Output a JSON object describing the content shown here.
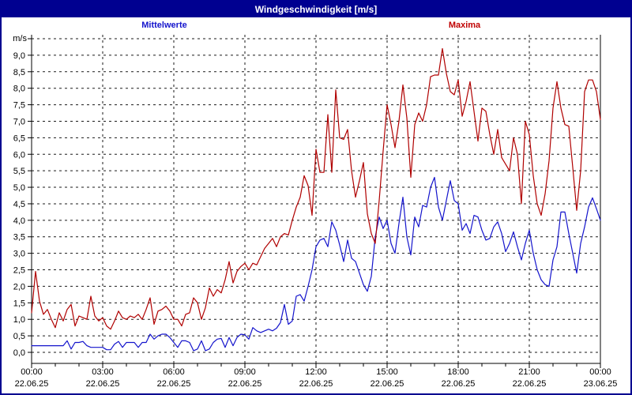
{
  "header": {
    "title": "Windgeschwindigkeit [m/s]"
  },
  "legend": {
    "mean_label": "Mittelwerte",
    "max_label": "Maxima"
  },
  "colors": {
    "header_bg": "#000090",
    "frame_border": "#000090",
    "mean_line": "#1414cc",
    "max_line": "#b00000",
    "grid": "#1a1a1a"
  },
  "chart_data": {
    "type": "line",
    "title": "Windgeschwindigkeit [m/s]",
    "ylabel": "m/s",
    "ylim": [
      0,
      9.5
    ],
    "ytick_step": 0.5,
    "ytick_labels": [
      "0,0",
      "0,5",
      "1,0",
      "1,5",
      "2,0",
      "2,5",
      "3,0",
      "3,5",
      "4,0",
      "4,5",
      "5,0",
      "5,5",
      "6,0",
      "6,5",
      "7,0",
      "7,5",
      "8,0",
      "8,5",
      "9,0"
    ],
    "grid": "dashed",
    "x_range_hours": [
      0,
      24
    ],
    "sample_interval_minutes": 10,
    "xticks": [
      {
        "hour": 0,
        "time": "00:00",
        "date": "22.06.25"
      },
      {
        "hour": 3,
        "time": "03:00",
        "date": "22.06.25"
      },
      {
        "hour": 6,
        "time": "06:00",
        "date": "22.06.25"
      },
      {
        "hour": 9,
        "time": "09:00",
        "date": "22.06.25"
      },
      {
        "hour": 12,
        "time": "12:00",
        "date": "22.06.25"
      },
      {
        "hour": 15,
        "time": "15:00",
        "date": "22.06.25"
      },
      {
        "hour": 18,
        "time": "18:00",
        "date": "22.06.25"
      },
      {
        "hour": 21,
        "time": "21:00",
        "date": "22.06.25"
      },
      {
        "hour": 24,
        "time": "00:00",
        "date": "23.06.25"
      }
    ],
    "series": [
      {
        "name": "Mittelwerte",
        "color": "#1414cc",
        "values": [
          0.2,
          0.2,
          0.2,
          0.2,
          0.2,
          0.2,
          0.2,
          0.2,
          0.2,
          0.35,
          0.1,
          0.3,
          0.3,
          0.33,
          0.2,
          0.15,
          0.15,
          0.15,
          0.15,
          0.08,
          0.08,
          0.25,
          0.33,
          0.15,
          0.3,
          0.3,
          0.3,
          0.15,
          0.3,
          0.3,
          0.55,
          0.4,
          0.5,
          0.55,
          0.55,
          0.45,
          0.3,
          0.15,
          0.35,
          0.35,
          0.3,
          0.05,
          0.1,
          0.35,
          0.05,
          0.1,
          0.3,
          0.4,
          0.42,
          0.15,
          0.45,
          0.2,
          0.45,
          0.55,
          0.53,
          0.4,
          0.75,
          0.65,
          0.6,
          0.65,
          0.7,
          0.65,
          0.73,
          0.9,
          1.45,
          0.85,
          0.95,
          1.7,
          1.75,
          1.55,
          2.0,
          2.5,
          3.2,
          3.4,
          3.45,
          3.2,
          3.95,
          3.7,
          3.25,
          2.75,
          3.4,
          2.85,
          2.75,
          2.4,
          2.05,
          1.85,
          2.3,
          3.5,
          4.1,
          3.75,
          4.0,
          3.3,
          3.0,
          3.9,
          4.7,
          3.5,
          2.95,
          4.1,
          3.8,
          4.45,
          4.4,
          5.0,
          5.3,
          4.4,
          4.0,
          4.6,
          5.2,
          4.6,
          4.5,
          3.7,
          3.9,
          3.6,
          4.15,
          4.1,
          3.7,
          3.4,
          3.45,
          3.8,
          3.95,
          3.6,
          3.05,
          3.3,
          3.65,
          3.2,
          2.8,
          3.3,
          3.7,
          3.0,
          2.5,
          2.2,
          2.05,
          2.0,
          2.8,
          3.2,
          4.25,
          4.25,
          3.6,
          3.0,
          2.4,
          3.3,
          3.8,
          4.4,
          4.68,
          4.35,
          4.0
        ]
      },
      {
        "name": "Maxima",
        "color": "#b00000",
        "values": [
          1.2,
          2.45,
          1.55,
          1.15,
          1.3,
          1.0,
          0.75,
          1.2,
          0.95,
          1.3,
          1.45,
          0.8,
          1.1,
          1.05,
          1.0,
          1.7,
          1.1,
          0.95,
          1.05,
          0.8,
          0.7,
          0.95,
          1.25,
          1.05,
          1.0,
          1.1,
          1.05,
          1.15,
          1.0,
          1.3,
          1.65,
          0.85,
          1.25,
          1.3,
          1.4,
          1.25,
          1.0,
          1.0,
          0.8,
          1.15,
          1.2,
          1.65,
          1.5,
          1.0,
          1.35,
          1.95,
          1.7,
          1.9,
          1.8,
          2.2,
          2.75,
          2.1,
          2.45,
          2.6,
          2.7,
          2.5,
          2.7,
          2.65,
          2.9,
          3.15,
          3.3,
          3.45,
          3.2,
          3.5,
          3.6,
          3.55,
          4.0,
          4.4,
          4.7,
          5.35,
          5.05,
          4.15,
          6.15,
          5.45,
          5.45,
          7.2,
          5.45,
          7.95,
          6.5,
          6.45,
          6.75,
          5.5,
          4.7,
          5.2,
          5.75,
          4.2,
          3.6,
          3.3,
          4.6,
          6.1,
          7.5,
          6.9,
          6.2,
          7.0,
          8.1,
          7.1,
          5.3,
          6.9,
          7.25,
          7.0,
          7.5,
          8.35,
          8.4,
          8.4,
          9.2,
          8.45,
          7.9,
          7.8,
          8.25,
          7.15,
          7.6,
          8.2,
          7.3,
          6.4,
          7.4,
          7.3,
          6.6,
          6.0,
          6.75,
          5.9,
          5.7,
          5.5,
          6.5,
          6.0,
          4.5,
          7.0,
          6.6,
          5.35,
          4.5,
          4.15,
          4.8,
          5.8,
          7.4,
          8.2,
          7.4,
          6.9,
          6.85,
          5.6,
          4.3,
          5.5,
          7.9,
          8.25,
          8.25,
          7.9,
          7.05
        ]
      }
    ]
  }
}
